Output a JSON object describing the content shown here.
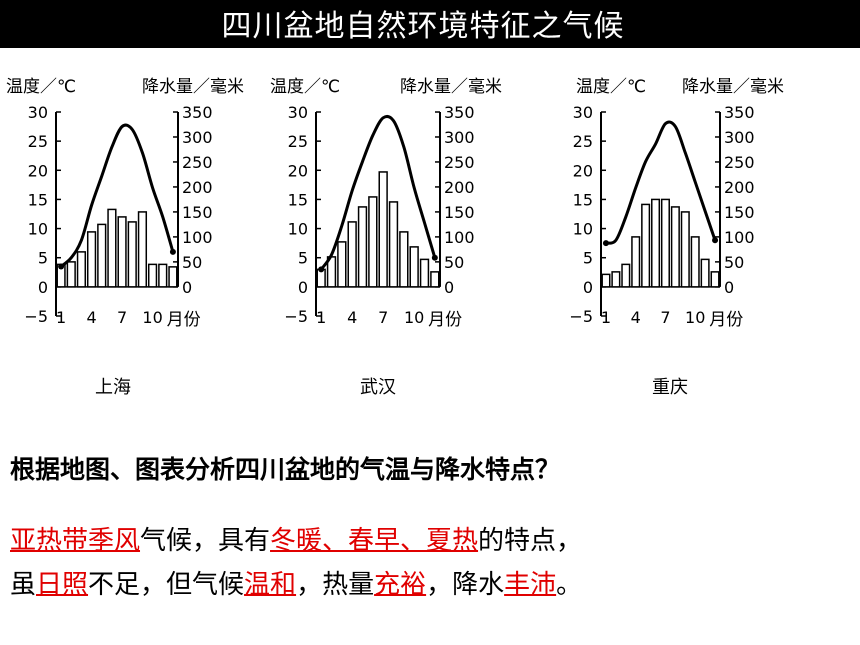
{
  "title": "四川盆地自然环境特征之气候",
  "axis_labels": {
    "temp": "温度／℃",
    "precip": "降水量／毫米",
    "month": "月份"
  },
  "chart_data": [
    {
      "type": "bar+line",
      "city": "上海",
      "months": [
        1,
        2,
        3,
        4,
        5,
        6,
        7,
        8,
        9,
        10,
        11,
        12
      ],
      "temperature": [
        3.5,
        5,
        8,
        14,
        19,
        24,
        27.5,
        27,
        23,
        17,
        12,
        6
      ],
      "precipitation": [
        45,
        50,
        70,
        110,
        125,
        155,
        140,
        130,
        150,
        45,
        45,
        40
      ],
      "temp_ylim": [
        -5,
        30
      ],
      "temp_ticks": [
        "30",
        "25",
        "20",
        "15",
        "10",
        "5",
        "0",
        "−5"
      ],
      "precip_ylim": [
        0,
        350
      ],
      "precip_ticks": [
        "350",
        "300",
        "250",
        "200",
        "150",
        "100",
        "50",
        "0"
      ],
      "x_ticks": [
        "1",
        "4",
        "7",
        "10"
      ]
    },
    {
      "type": "bar+line",
      "city": "武汉",
      "months": [
        1,
        2,
        3,
        4,
        5,
        6,
        7,
        8,
        9,
        10,
        11,
        12
      ],
      "temperature": [
        3,
        5.5,
        10.5,
        16.5,
        21.5,
        26,
        29,
        28.5,
        24,
        17,
        11,
        5
      ],
      "precipitation": [
        35,
        60,
        90,
        130,
        160,
        180,
        230,
        170,
        110,
        80,
        55,
        30
      ],
      "temp_ylim": [
        -5,
        30
      ],
      "temp_ticks": [
        "30",
        "25",
        "20",
        "15",
        "10",
        "5",
        "0",
        "−5"
      ],
      "precip_ylim": [
        0,
        350
      ],
      "precip_ticks": [
        "350",
        "300",
        "250",
        "200",
        "150",
        "100",
        "50",
        "0"
      ],
      "x_ticks": [
        "1",
        "4",
        "7",
        "10"
      ]
    },
    {
      "type": "bar+line",
      "city": "重庆",
      "months": [
        1,
        2,
        3,
        4,
        5,
        6,
        7,
        8,
        9,
        10,
        11,
        12
      ],
      "temperature": [
        7.5,
        8,
        12,
        17,
        21.5,
        24.5,
        28,
        27.5,
        23,
        18,
        13,
        8
      ],
      "precipitation": [
        25,
        30,
        45,
        100,
        165,
        175,
        175,
        160,
        150,
        100,
        55,
        30
      ],
      "temp_ylim": [
        -5,
        30
      ],
      "temp_ticks": [
        "30",
        "25",
        "20",
        "15",
        "10",
        "5",
        "0",
        "−5"
      ],
      "precip_ylim": [
        0,
        350
      ],
      "precip_ticks": [
        "350",
        "300",
        "250",
        "200",
        "150",
        "100",
        "50",
        "0"
      ],
      "x_ticks": [
        "1",
        "4",
        "7",
        "10"
      ]
    }
  ],
  "question": "根据地图、图表分析四川盆地的气温与降水特点？",
  "answer_line1": [
    {
      "text": "亚热带季风",
      "hl": true
    },
    {
      "text": "气候，具有",
      "hl": false
    },
    {
      "text": "冬暖、春早、夏热",
      "hl": true
    },
    {
      "text": "的特点，",
      "hl": false
    }
  ],
  "answer_line2": [
    {
      "text": "虽",
      "hl": false
    },
    {
      "text": "日照",
      "hl": true
    },
    {
      "text": "不足，但气候",
      "hl": false
    },
    {
      "text": "温和",
      "hl": true
    },
    {
      "text": "，热量",
      "hl": false
    },
    {
      "text": "充裕",
      "hl": true
    },
    {
      "text": "，降水",
      "hl": false
    },
    {
      "text": "丰沛",
      "hl": true
    },
    {
      "text": "。",
      "hl": false
    }
  ],
  "colors": {
    "highlight": "#e00000",
    "background": "#000000",
    "panel": "#ffffff"
  }
}
